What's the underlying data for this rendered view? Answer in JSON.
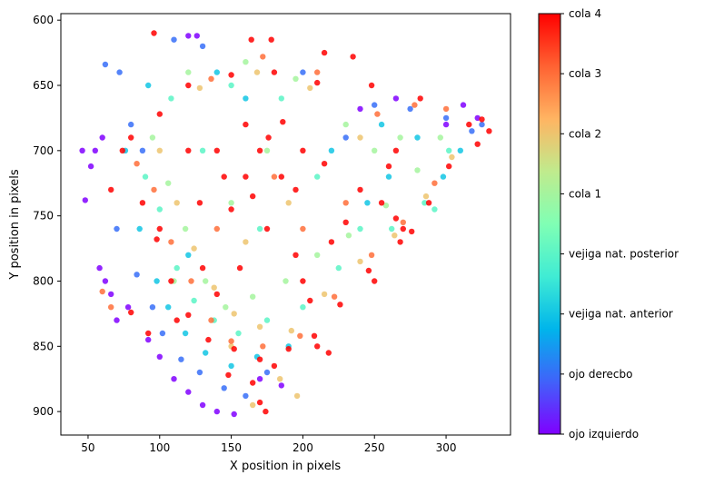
{
  "chart_data": {
    "type": "scatter",
    "title": "",
    "xlabel": "X position in pixels",
    "ylabel": "Y position in pixels",
    "xlim": [
      31,
      345
    ],
    "ylim": [
      918,
      595
    ],
    "y_inverted": true,
    "xticks": [
      50,
      100,
      150,
      200,
      250,
      300
    ],
    "yticks": [
      600,
      650,
      700,
      750,
      800,
      850,
      900
    ],
    "grid": false,
    "colormap": "rainbow",
    "colorbar": {
      "labels": [
        "ojo izquierdo",
        "ojo derecbo",
        "vejiga nat. anterior",
        "vejiga nat. posterior",
        "cola 1",
        "cola 2",
        "cola 3",
        "cola 4"
      ],
      "stops": [
        "#8000ff",
        "#4062fa",
        "#00b5eb",
        "#40ecd4",
        "#80ffb4",
        "#c0eb8d",
        "#ffb462",
        "#ff6232",
        "#ff0000"
      ]
    },
    "series": [
      {
        "category_index": 0,
        "points": [
          [
            46,
            700
          ],
          [
            48,
            738
          ],
          [
            52,
            712
          ],
          [
            60,
            690
          ],
          [
            58,
            790
          ],
          [
            66,
            810
          ],
          [
            70,
            830
          ],
          [
            92,
            845
          ],
          [
            100,
            858
          ],
          [
            110,
            875
          ],
          [
            120,
            885
          ],
          [
            130,
            895
          ],
          [
            140,
            900
          ],
          [
            152,
            902
          ],
          [
            120,
            612
          ],
          [
            126,
            612
          ],
          [
            170,
            875
          ],
          [
            185,
            880
          ],
          [
            240,
            668
          ],
          [
            265,
            660
          ],
          [
            312,
            665
          ],
          [
            322,
            675
          ],
          [
            300,
            680
          ],
          [
            55,
            700
          ],
          [
            62,
            800
          ],
          [
            78,
            820
          ]
        ]
      },
      {
        "category_index": 1,
        "points": [
          [
            62,
            634
          ],
          [
            72,
            640
          ],
          [
            80,
            680
          ],
          [
            88,
            700
          ],
          [
            95,
            820
          ],
          [
            102,
            840
          ],
          [
            115,
            860
          ],
          [
            128,
            870
          ],
          [
            145,
            882
          ],
          [
            160,
            888
          ],
          [
            175,
            870
          ],
          [
            110,
            615
          ],
          [
            130,
            620
          ],
          [
            250,
            665
          ],
          [
            275,
            668
          ],
          [
            300,
            675
          ],
          [
            318,
            685
          ],
          [
            325,
            680
          ],
          [
            70,
            760
          ],
          [
            84,
            795
          ],
          [
            200,
            640
          ],
          [
            230,
            690
          ]
        ]
      },
      {
        "category_index": 2,
        "points": [
          [
            76,
            700
          ],
          [
            86,
            760
          ],
          [
            98,
            800
          ],
          [
            106,
            820
          ],
          [
            118,
            840
          ],
          [
            132,
            855
          ],
          [
            150,
            865
          ],
          [
            168,
            858
          ],
          [
            190,
            850
          ],
          [
            255,
            680
          ],
          [
            280,
            690
          ],
          [
            298,
            720
          ],
          [
            310,
            700
          ],
          [
            92,
            650
          ],
          [
            140,
            640
          ],
          [
            160,
            660
          ],
          [
            220,
            700
          ],
          [
            245,
            740
          ],
          [
            120,
            780
          ],
          [
            260,
            720
          ]
        ]
      },
      {
        "category_index": 3,
        "points": [
          [
            90,
            720
          ],
          [
            100,
            745
          ],
          [
            112,
            790
          ],
          [
            124,
            815
          ],
          [
            138,
            830
          ],
          [
            155,
            840
          ],
          [
            175,
            830
          ],
          [
            200,
            820
          ],
          [
            225,
            790
          ],
          [
            262,
            760
          ],
          [
            285,
            740
          ],
          [
            302,
            700
          ],
          [
            108,
            660
          ],
          [
            150,
            650
          ],
          [
            185,
            660
          ],
          [
            210,
            720
          ],
          [
            240,
            760
          ],
          [
            130,
            700
          ],
          [
            170,
            760
          ],
          [
            292,
            745
          ]
        ]
      },
      {
        "category_index": 4,
        "points": [
          [
            95,
            690
          ],
          [
            106,
            725
          ],
          [
            118,
            760
          ],
          [
            132,
            800
          ],
          [
            146,
            820
          ],
          [
            165,
            812
          ],
          [
            188,
            800
          ],
          [
            210,
            780
          ],
          [
            232,
            765
          ],
          [
            258,
            742
          ],
          [
            280,
            715
          ],
          [
            296,
            690
          ],
          [
            120,
            640
          ],
          [
            160,
            632
          ],
          [
            195,
            645
          ],
          [
            230,
            680
          ],
          [
            150,
            740
          ],
          [
            175,
            700
          ],
          [
            250,
            700
          ],
          [
            268,
            690
          ],
          [
            110,
            800
          ]
        ]
      },
      {
        "category_index": 5,
        "points": [
          [
            100,
            700
          ],
          [
            112,
            740
          ],
          [
            124,
            775
          ],
          [
            138,
            805
          ],
          [
            152,
            825
          ],
          [
            170,
            835
          ],
          [
            192,
            838
          ],
          [
            215,
            810
          ],
          [
            240,
            785
          ],
          [
            264,
            765
          ],
          [
            286,
            735
          ],
          [
            304,
            705
          ],
          [
            128,
            652
          ],
          [
            168,
            640
          ],
          [
            205,
            652
          ],
          [
            240,
            690
          ],
          [
            160,
            770
          ],
          [
            190,
            740
          ],
          [
            150,
            850
          ],
          [
            184,
            875
          ],
          [
            196,
            888
          ],
          [
            165,
            895
          ]
        ]
      },
      {
        "category_index": 6,
        "points": [
          [
            84,
            710
          ],
          [
            96,
            730
          ],
          [
            108,
            770
          ],
          [
            122,
            800
          ],
          [
            136,
            830
          ],
          [
            150,
            846
          ],
          [
            172,
            850
          ],
          [
            198,
            842
          ],
          [
            222,
            812
          ],
          [
            248,
            780
          ],
          [
            270,
            755
          ],
          [
            292,
            725
          ],
          [
            136,
            645
          ],
          [
            172,
            628
          ],
          [
            210,
            640
          ],
          [
            252,
            672
          ],
          [
            180,
            720
          ],
          [
            200,
            760
          ],
          [
            140,
            760
          ],
          [
            230,
            740
          ],
          [
            278,
            665
          ],
          [
            300,
            668
          ],
          [
            60,
            808
          ],
          [
            66,
            820
          ]
        ]
      },
      {
        "category_index": 7,
        "points": [
          [
            80,
            690
          ],
          [
            88,
            740
          ],
          [
            98,
            768
          ],
          [
            108,
            800
          ],
          [
            120,
            826
          ],
          [
            134,
            845
          ],
          [
            152,
            852
          ],
          [
            170,
            860
          ],
          [
            190,
            852
          ],
          [
            208,
            842
          ],
          [
            226,
            818
          ],
          [
            246,
            792
          ],
          [
            268,
            770
          ],
          [
            288,
            740
          ],
          [
            302,
            712
          ],
          [
            316,
            680
          ],
          [
            325,
            676
          ],
          [
            282,
            660
          ],
          [
            248,
            650
          ],
          [
            210,
            648
          ],
          [
            180,
            640
          ],
          [
            150,
            642
          ],
          [
            120,
            650
          ],
          [
            100,
            672
          ],
          [
            170,
            700
          ],
          [
            160,
            720
          ],
          [
            150,
            745
          ],
          [
            175,
            760
          ],
          [
            195,
            780
          ],
          [
            220,
            770
          ],
          [
            240,
            730
          ],
          [
            260,
            712
          ],
          [
            140,
            700
          ],
          [
            128,
            740
          ],
          [
            160,
            680
          ],
          [
            200,
            700
          ],
          [
            215,
            710
          ],
          [
            185,
            720
          ],
          [
            156,
            790
          ],
          [
            130,
            790
          ],
          [
            112,
            830
          ],
          [
            148,
            872
          ],
          [
            165,
            878
          ],
          [
            180,
            865
          ],
          [
            200,
            800
          ],
          [
            230,
            755
          ],
          [
            255,
            740
          ],
          [
            265,
            700
          ],
          [
            120,
            700
          ],
          [
            100,
            760
          ],
          [
            92,
            840
          ],
          [
            80,
            824
          ],
          [
            96,
            610
          ],
          [
            164,
            615
          ],
          [
            178,
            615
          ],
          [
            215,
            625
          ],
          [
            235,
            628
          ],
          [
            330,
            685
          ],
          [
            322,
            695
          ],
          [
            174,
            900
          ],
          [
            170,
            893
          ],
          [
            265,
            752
          ],
          [
            270,
            760
          ],
          [
            276,
            762
          ],
          [
            66,
            730
          ],
          [
            74,
            700
          ],
          [
            186,
            678
          ],
          [
            176,
            690
          ],
          [
            195,
            730
          ],
          [
            165,
            735
          ],
          [
            145,
            720
          ],
          [
            140,
            810
          ],
          [
            205,
            815
          ],
          [
            218,
            855
          ],
          [
            210,
            850
          ],
          [
            250,
            800
          ]
        ]
      }
    ]
  }
}
